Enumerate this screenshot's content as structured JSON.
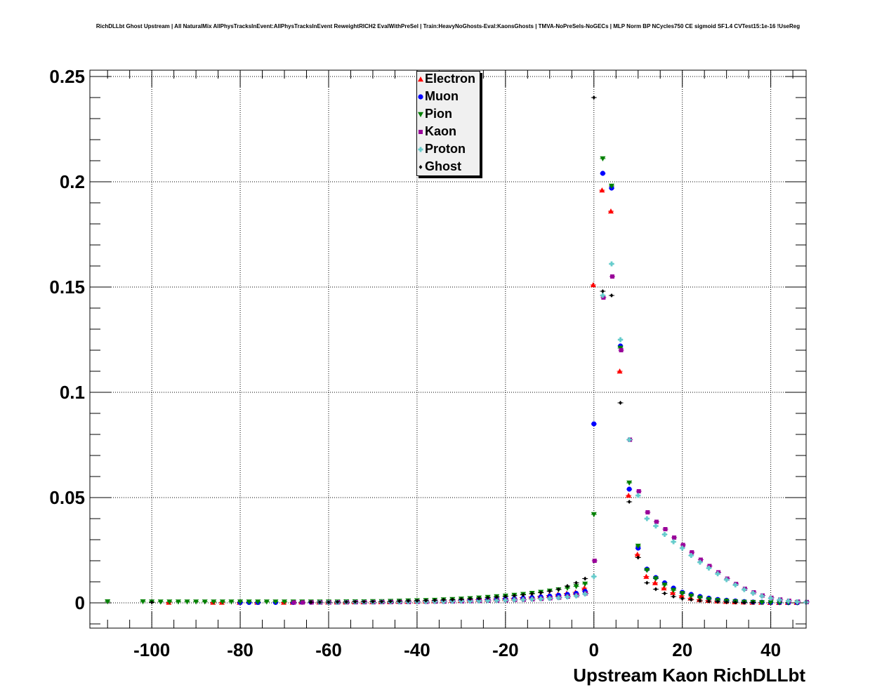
{
  "title": "RichDLLbt Ghost Upstream | All NaturalMix AllPhysTracksInEvent:AllPhysTracksInEvent ReweightRICH2 EvalWithPreSel | Train:HeavyNoGhosts-Eval:KaonsGhosts | TMVA-NoPreSels-NoGECs | MLP Norm BP NCycles750 CE sigmoid SF1.4 CVTest15:1e-16 !UseReg",
  "chart_data": {
    "type": "scatter",
    "title": "RichDLLbt Ghost Upstream | All NaturalMix AllPhysTracksInEvent:AllPhysTracksInEvent ReweightRICH2 EvalWithPreSel | Train:HeavyNoGhosts-Eval:KaonsGhosts | TMVA-NoPreSels-NoGECs | MLP Norm BP NCycles750 CE sigmoid SF1.4 CVTest15:1e-16 !UseReg",
    "xlabel": "Upstream Kaon RichDLLbt",
    "ylabel": "",
    "xlim": [
      -114,
      48
    ],
    "ylim": [
      -0.012,
      0.253
    ],
    "grid": true,
    "legend_position": "top-center",
    "xticks": [
      -100,
      -80,
      -60,
      -40,
      -20,
      0,
      20,
      40
    ],
    "xtick_labels": [
      "-100",
      "-80",
      "-60",
      "-40",
      "-20",
      "0",
      "20",
      "40"
    ],
    "yticks": [
      0,
      0.05,
      0.1,
      0.15,
      0.2,
      0.25
    ],
    "ytick_labels": [
      "0",
      "0.05",
      "0.1",
      "0.15",
      "0.2",
      "0.25"
    ],
    "x": [
      -110,
      -108,
      -106,
      -104,
      -102,
      -100,
      -98,
      -96,
      -94,
      -92,
      -90,
      -88,
      -86,
      -84,
      -82,
      -80,
      -78,
      -76,
      -74,
      -72,
      -70,
      -68,
      -66,
      -64,
      -62,
      -60,
      -58,
      -56,
      -54,
      -52,
      -50,
      -48,
      -46,
      -44,
      -42,
      -40,
      -38,
      -36,
      -34,
      -32,
      -30,
      -28,
      -26,
      -24,
      -22,
      -20,
      -18,
      -16,
      -14,
      -12,
      -10,
      -8,
      -6,
      -4,
      -2,
      0,
      2,
      4,
      6,
      8,
      10,
      12,
      14,
      16,
      18,
      20,
      22,
      24,
      26,
      28,
      30,
      32,
      34,
      36,
      38,
      40,
      42,
      44,
      46,
      48
    ],
    "series": [
      {
        "name": "Electron",
        "color": "#ff0000",
        "marker": "triangle-up",
        "values": [
          null,
          null,
          null,
          null,
          null,
          null,
          null,
          0.0002,
          null,
          null,
          null,
          null,
          0.0002,
          0.0002,
          null,
          0.0002,
          null,
          0.0002,
          null,
          null,
          0.0002,
          0.0002,
          0.0003,
          null,
          0.0003,
          0.0003,
          0.0003,
          0.0003,
          0.0004,
          0.0004,
          0.0005,
          0.0005,
          0.0005,
          0.0006,
          0.0006,
          0.0007,
          0.0008,
          0.0009,
          0.001,
          0.0011,
          0.0012,
          0.0013,
          0.0015,
          0.0016,
          0.0018,
          0.002,
          0.0022,
          0.0025,
          0.0028,
          0.0031,
          0.0035,
          0.004,
          0.0045,
          0.005,
          0.007,
          0.151,
          0.196,
          0.186,
          0.11,
          0.051,
          0.023,
          0.0125,
          0.0095,
          0.007,
          0.0048,
          0.0034,
          0.0022,
          0.0015,
          0.0011,
          0.0008,
          0.0006,
          0.0004,
          0.0003,
          0.0002,
          0.0002,
          0.0001,
          0.0001,
          0.0001,
          0.0001,
          null
        ]
      },
      {
        "name": "Muon",
        "color": "#0000ff",
        "marker": "circle",
        "values": [
          null,
          null,
          null,
          null,
          null,
          null,
          null,
          null,
          null,
          null,
          null,
          null,
          null,
          null,
          null,
          0.0002,
          0.0002,
          0.0002,
          null,
          0.0002,
          null,
          0.0002,
          0.0003,
          0.0003,
          0.0003,
          0.0003,
          0.0003,
          0.0004,
          0.0004,
          0.0004,
          0.0005,
          0.0005,
          0.0005,
          0.0006,
          0.0006,
          0.0007,
          0.0007,
          0.0008,
          0.0009,
          0.001,
          0.0011,
          0.0012,
          0.0013,
          0.0014,
          0.0016,
          0.0018,
          0.002,
          0.0022,
          0.0025,
          0.0028,
          0.0032,
          0.0036,
          0.004,
          0.0045,
          0.0055,
          0.085,
          0.204,
          0.197,
          0.122,
          0.054,
          0.026,
          0.016,
          0.012,
          0.0095,
          0.007,
          0.005,
          0.004,
          0.003,
          0.0022,
          0.0016,
          0.0012,
          0.0009,
          0.0006,
          0.0004,
          0.0003,
          0.0002,
          0.0002,
          0.0001,
          0.0001,
          null
        ]
      },
      {
        "name": "Pion",
        "color": "#008000",
        "marker": "triangle-down",
        "values": [
          0.0006,
          null,
          null,
          null,
          0.0006,
          0.0005,
          0.0005,
          0.0005,
          0.0005,
          0.0005,
          0.0005,
          0.0005,
          0.0005,
          0.0005,
          0.0005,
          0.0005,
          0.0005,
          0.0005,
          0.0005,
          0.0005,
          0.0005,
          0.0005,
          0.0005,
          0.0005,
          0.0005,
          0.0005,
          0.0005,
          0.0006,
          0.0006,
          0.0006,
          0.0007,
          0.0007,
          0.0008,
          0.0009,
          0.001,
          0.0011,
          0.0012,
          0.0013,
          0.0015,
          0.0017,
          0.0019,
          0.0021,
          0.0024,
          0.0027,
          0.003,
          0.0033,
          0.0037,
          0.0041,
          0.0046,
          0.0051,
          0.0057,
          0.0063,
          0.007,
          0.0078,
          0.009,
          0.042,
          0.211,
          0.198,
          0.121,
          0.057,
          0.027,
          0.0155,
          0.0115,
          0.0085,
          0.006,
          0.0045,
          0.0033,
          0.0024,
          0.0017,
          0.0012,
          0.0009,
          0.0006,
          0.0004,
          0.0003,
          0.0002,
          0.0002,
          0.0001,
          0.0001,
          0.0001,
          null
        ]
      },
      {
        "name": "Kaon",
        "color": "#990099",
        "marker": "square",
        "values": [
          null,
          null,
          null,
          null,
          null,
          null,
          null,
          null,
          null,
          null,
          null,
          null,
          null,
          null,
          null,
          null,
          null,
          null,
          null,
          null,
          null,
          0.0002,
          0.0002,
          0.0002,
          0.0002,
          0.0002,
          0.0003,
          0.0003,
          0.0003,
          0.0003,
          0.0003,
          0.0004,
          0.0004,
          0.0004,
          0.0004,
          0.0005,
          0.0005,
          0.0006,
          0.0006,
          0.0007,
          0.0007,
          0.0008,
          0.0009,
          0.001,
          0.0011,
          0.0012,
          0.0014,
          0.0015,
          0.0017,
          0.0019,
          0.0022,
          0.0025,
          0.003,
          0.0036,
          0.0045,
          0.02,
          0.145,
          0.155,
          0.12,
          0.0775,
          0.053,
          0.043,
          0.0385,
          0.035,
          0.031,
          0.0275,
          0.024,
          0.0205,
          0.0175,
          0.0145,
          0.0115,
          0.009,
          0.0067,
          0.005,
          0.0035,
          0.0024,
          0.0016,
          0.001,
          0.0006,
          0.0004
        ]
      },
      {
        "name": "Proton",
        "color": "#66cccc",
        "marker": "cross",
        "values": [
          null,
          null,
          null,
          null,
          null,
          null,
          null,
          null,
          null,
          null,
          null,
          null,
          null,
          null,
          null,
          null,
          null,
          null,
          null,
          null,
          null,
          null,
          null,
          null,
          0.0002,
          0.0002,
          0.0002,
          0.0003,
          0.0003,
          0.0003,
          0.0003,
          0.0004,
          0.0004,
          0.0004,
          0.0005,
          0.0005,
          0.0005,
          0.0006,
          0.0006,
          0.0007,
          0.0008,
          0.0008,
          0.0009,
          0.001,
          0.0011,
          0.0012,
          0.0014,
          0.0015,
          0.0017,
          0.0019,
          0.0021,
          0.0024,
          0.0028,
          0.0033,
          0.0042,
          0.0125,
          0.146,
          0.161,
          0.125,
          0.0775,
          0.051,
          0.04,
          0.0365,
          0.0325,
          0.029,
          0.026,
          0.0225,
          0.0193,
          0.0165,
          0.0138,
          0.011,
          0.0085,
          0.0063,
          0.0046,
          0.0032,
          0.0022,
          0.0014,
          0.0009,
          0.0005,
          0.0003
        ]
      },
      {
        "name": "Ghost",
        "color": "#000000",
        "marker": "diamond",
        "values": [
          null,
          null,
          null,
          null,
          null,
          0.0002,
          null,
          null,
          null,
          null,
          null,
          null,
          null,
          null,
          null,
          null,
          null,
          null,
          null,
          null,
          null,
          null,
          null,
          0.0003,
          0.0003,
          0.0003,
          0.0004,
          0.0004,
          0.0005,
          0.0005,
          0.0006,
          0.0006,
          0.0007,
          0.0008,
          0.0009,
          0.001,
          0.0011,
          0.0012,
          0.0014,
          0.0015,
          0.0017,
          0.0019,
          0.0021,
          0.0024,
          0.0027,
          0.003,
          0.0034,
          0.0038,
          0.0043,
          0.0048,
          0.0055,
          0.0064,
          0.008,
          0.0095,
          0.0115,
          0.24,
          0.148,
          0.146,
          0.095,
          0.048,
          0.0215,
          0.0095,
          0.0065,
          0.0045,
          0.003,
          0.002,
          0.0015,
          0.001,
          0.0007,
          0.0005,
          0.0003,
          0.0002,
          0.0001,
          0.0001,
          null,
          null,
          null,
          null,
          null,
          null
        ]
      }
    ]
  }
}
